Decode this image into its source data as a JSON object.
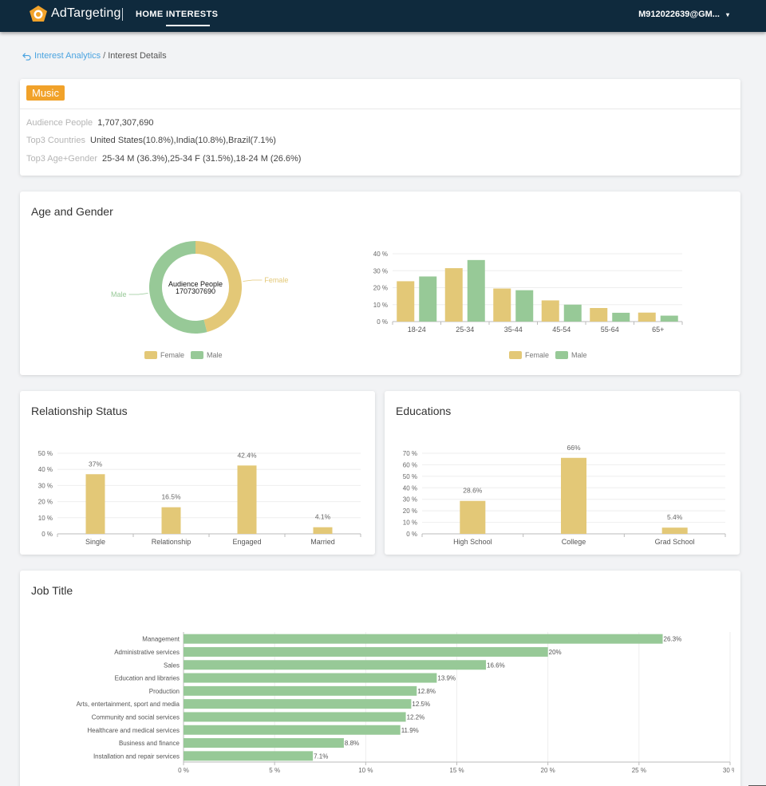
{
  "header": {
    "brand": "AdTargeting",
    "nav": [
      {
        "label": "HOME"
      },
      {
        "label": "INTERESTS"
      }
    ],
    "user": "M912022639@GM...",
    "caret": "▾"
  },
  "breadcrumb": {
    "parent": "Interest Analytics",
    "separator": "/",
    "current": "Interest Details"
  },
  "interest": {
    "tag": "Music",
    "rows": [
      {
        "key": "Audience People",
        "value": "1,707,307,690"
      },
      {
        "key": "Top3 Countries",
        "value": "United States(10.8%),India(10.8%),Brazil(7.1%)"
      },
      {
        "key": "Top3 Age+Gender",
        "value": "25-34 M (36.3%),25-34 F (31.5%),18-24 M (26.6%)"
      }
    ]
  },
  "colors": {
    "female": "#e3c877",
    "male": "#97c997",
    "job": "#97c997"
  },
  "age_gender": {
    "title": "Age and Gender",
    "legend": [
      "Female",
      "Male"
    ]
  },
  "relationship": {
    "title": "Relationship Status"
  },
  "education": {
    "title": "Educations"
  },
  "job": {
    "title": "Job Title"
  },
  "chart_data": [
    {
      "type": "pie",
      "center_label": "Audience People",
      "center_value": "1707307690",
      "labels": [
        "Female",
        "Male"
      ],
      "values": [
        46,
        54
      ]
    },
    {
      "type": "bar",
      "categories": [
        "18-24",
        "25-34",
        "35-44",
        "45-54",
        "55-64",
        "65+"
      ],
      "series": [
        {
          "name": "Female",
          "values": [
            23.8,
            31.5,
            19.5,
            12.5,
            8.0,
            5.3
          ]
        },
        {
          "name": "Male",
          "values": [
            26.6,
            36.3,
            18.5,
            10.0,
            5.2,
            3.5
          ]
        }
      ],
      "yticks": [
        "0 %",
        "10 %",
        "20 %",
        "30 %",
        "40 %"
      ],
      "ylim": [
        0,
        40
      ]
    },
    {
      "type": "bar",
      "categories": [
        "Single",
        "Relationship",
        "Engaged",
        "Married"
      ],
      "values": [
        37,
        16.5,
        42.4,
        4.1
      ],
      "labels": [
        "37%",
        "16.5%",
        "42.4%",
        "4.1%"
      ],
      "yticks": [
        "0 %",
        "10 %",
        "20 %",
        "30 %",
        "40 %",
        "50 %"
      ],
      "ylim": [
        0,
        50
      ]
    },
    {
      "type": "bar",
      "categories": [
        "High School",
        "College",
        "Grad School"
      ],
      "values": [
        28.6,
        66,
        5.4
      ],
      "labels": [
        "28.6%",
        "66%",
        "5.4%"
      ],
      "yticks": [
        "0 %",
        "10 %",
        "20 %",
        "30 %",
        "40 %",
        "50 %",
        "60 %",
        "70 %"
      ],
      "ylim": [
        0,
        70
      ]
    },
    {
      "type": "bar",
      "orientation": "horizontal",
      "categories": [
        "Management",
        "Administrative services",
        "Sales",
        "Education and libraries",
        "Production",
        "Arts, entertainment, sport and media",
        "Community and social services",
        "Healthcare and medical services",
        "Business and finance",
        "Installation and repair services"
      ],
      "values": [
        26.3,
        20,
        16.6,
        13.9,
        12.8,
        12.5,
        12.2,
        11.9,
        8.8,
        7.1
      ],
      "labels": [
        "26.3%",
        "20%",
        "16.6%",
        "13.9%",
        "12.8%",
        "12.5%",
        "12.2%",
        "11.9%",
        "8.8%",
        "7.1%"
      ],
      "xticks": [
        "0 %",
        "5 %",
        "10 %",
        "15 %",
        "20 %",
        "25 %",
        "30 %"
      ],
      "xlim": [
        0,
        30
      ]
    }
  ]
}
